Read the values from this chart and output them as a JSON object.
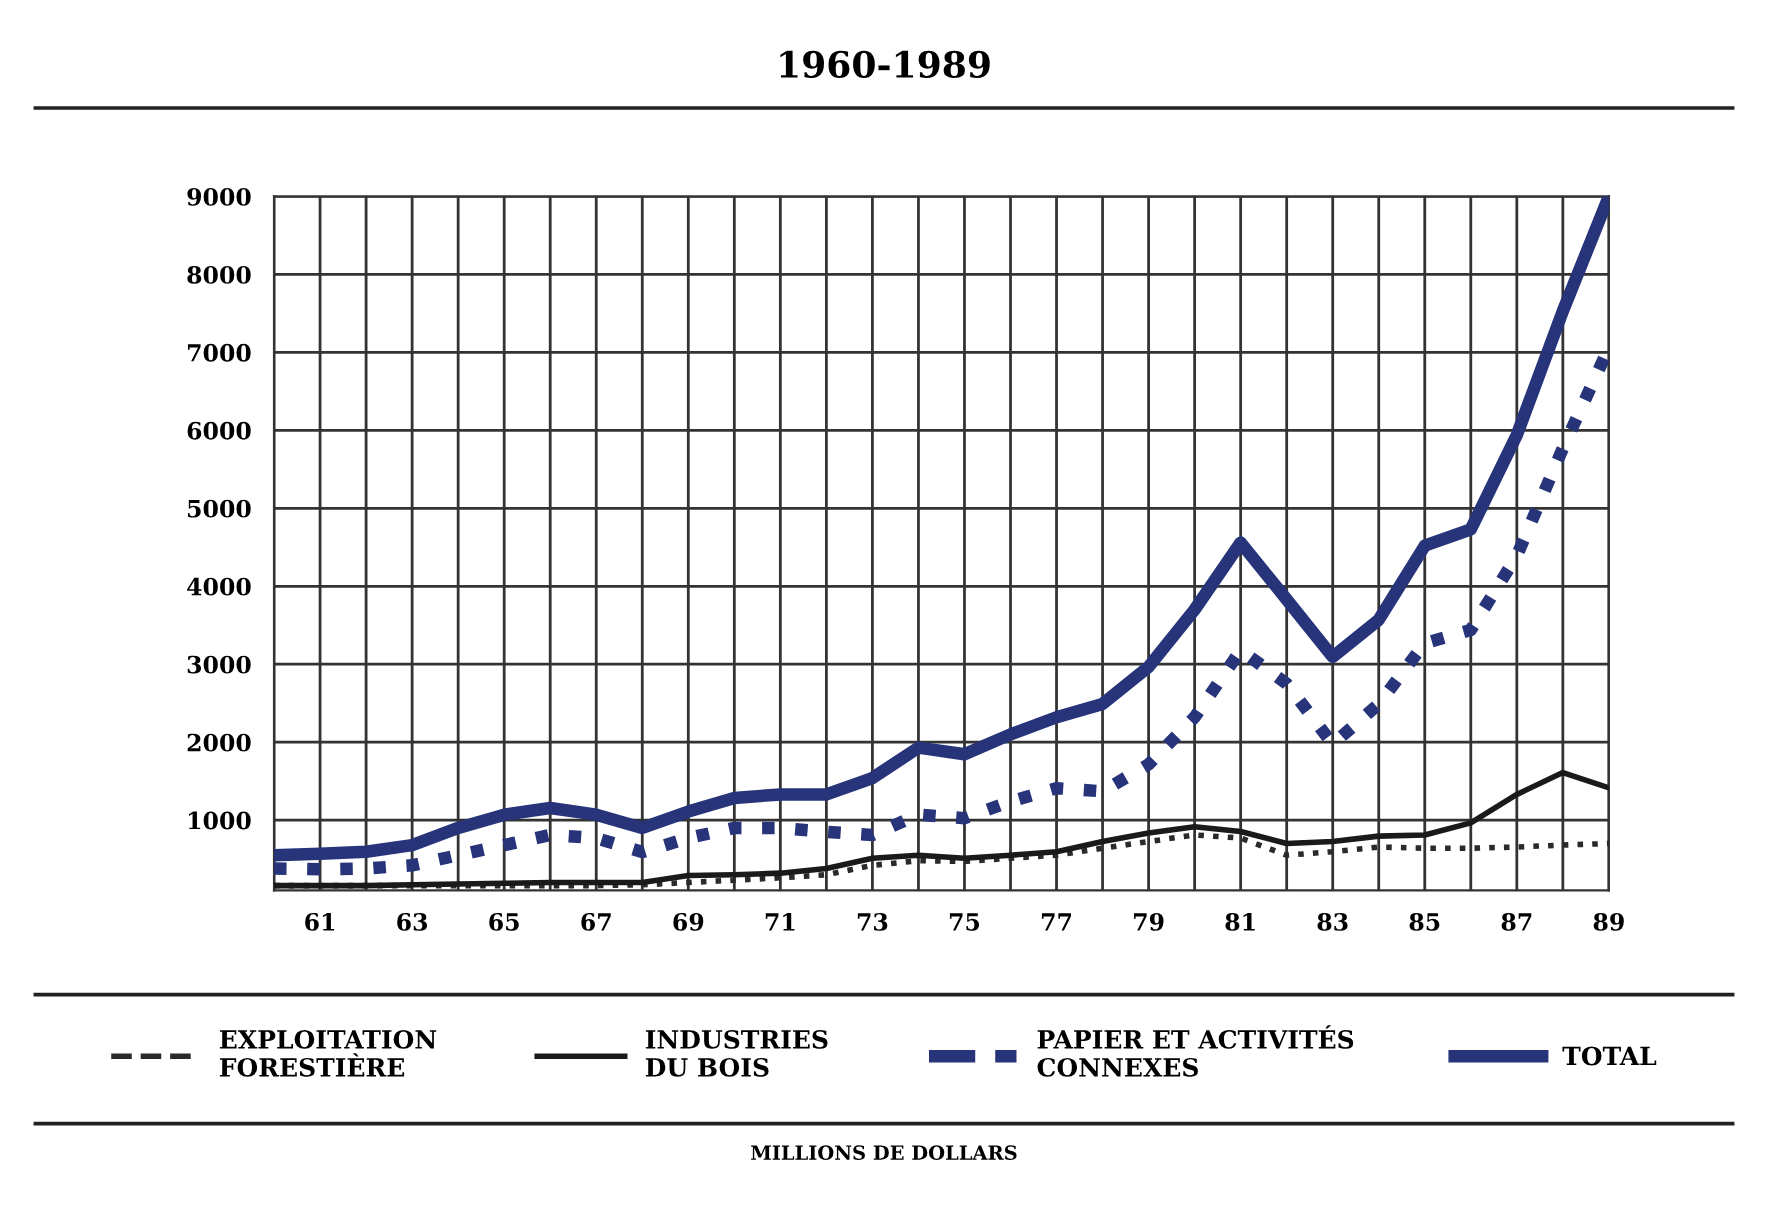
{
  "chart_data": {
    "type": "line",
    "title": "1960-1989",
    "x": [
      60,
      61,
      62,
      63,
      64,
      65,
      66,
      67,
      68,
      69,
      70,
      71,
      72,
      73,
      74,
      75,
      76,
      77,
      78,
      79,
      80,
      81,
      82,
      83,
      84,
      85,
      86,
      87,
      88,
      89
    ],
    "series": [
      {
        "name": "EXPLOITATION\nFORESTIÈRE",
        "color": "#2a2a2a",
        "line_style": "dotted",
        "values": [
          160,
          160,
          160,
          160,
          160,
          160,
          160,
          160,
          170,
          200,
          230,
          260,
          300,
          420,
          480,
          470,
          510,
          550,
          640,
          725,
          810,
          770,
          550,
          595,
          655,
          640,
          640,
          655,
          680,
          700
        ]
      },
      {
        "name": "INDUSTRIES\nDU BOIS",
        "color": "#1a1a1a",
        "line_style": "solid",
        "values": [
          160,
          160,
          160,
          170,
          180,
          190,
          200,
          200,
          200,
          290,
          300,
          320,
          380,
          510,
          550,
          510,
          550,
          595,
          725,
          835,
          915,
          855,
          700,
          725,
          795,
          810,
          965,
          1330,
          1610,
          1415
        ]
      },
      {
        "name": "PAPIER ET ACTIVITÉS\nCONNEXES",
        "color": "#27347a",
        "line_style": "dotted",
        "values": [
          380,
          370,
          380,
          420,
          550,
          680,
          810,
          770,
          590,
          770,
          900,
          900,
          850,
          810,
          1070,
          1025,
          1240,
          1410,
          1370,
          1715,
          2320,
          3180,
          2750,
          1975,
          2490,
          3270,
          3440,
          4390,
          5770,
          7060
        ]
      },
      {
        "name": "TOTAL",
        "color": "#27347a",
        "line_style": "solid",
        "values": [
          550,
          570,
          595,
          680,
          900,
          1070,
          1155,
          1070,
          900,
          1110,
          1285,
          1330,
          1330,
          1540,
          1930,
          1845,
          2100,
          2320,
          2490,
          2965,
          3700,
          4560,
          3830,
          3095,
          3570,
          4520,
          4730,
          5940,
          7530,
          9000
        ]
      }
    ],
    "xlim": [
      60,
      89
    ],
    "xticks": [
      {
        "value": 60,
        "label": null
      },
      61,
      {
        "value": 62,
        "label": null
      },
      63,
      {
        "value": 64,
        "label": null
      },
      65,
      {
        "value": 66,
        "label": null
      },
      67,
      {
        "value": 68,
        "label": null
      },
      69,
      {
        "value": 70,
        "label": null
      },
      71,
      {
        "value": 72,
        "label": null
      },
      73,
      {
        "value": 74,
        "label": null
      },
      75,
      {
        "value": 76,
        "label": null
      },
      77,
      {
        "value": 78,
        "label": null
      },
      79,
      {
        "value": 80,
        "label": null
      },
      81,
      {
        "value": 82,
        "label": null
      },
      83,
      {
        "value": 84,
        "label": null
      },
      85,
      {
        "value": 86,
        "label": null
      },
      87,
      {
        "value": 88,
        "label": null
      },
      89
    ],
    "ylim": [
      100,
      9000
    ],
    "yticks": [
      1000,
      2000,
      3000,
      4000,
      5000,
      6000,
      7000,
      8000,
      9000
    ],
    "grid": true,
    "legend": "bottom",
    "marker": "none",
    "annotations": [
      "MILLIONS DE DOLLARS"
    ]
  }
}
